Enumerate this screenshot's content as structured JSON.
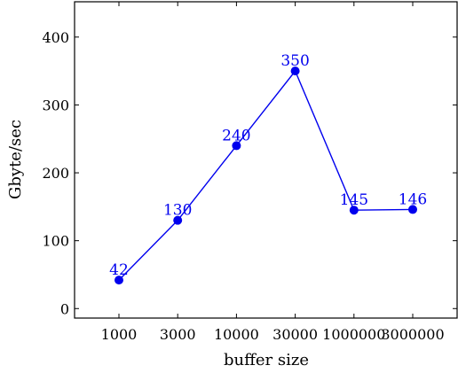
{
  "chart_data": {
    "type": "line",
    "title": "",
    "xlabel": "buffer size",
    "ylabel": "Gbyte/sec",
    "categories": [
      "1000",
      "3000",
      "10000",
      "30000",
      "1000000",
      "3000000"
    ],
    "series": [
      {
        "values": [
          42,
          130,
          240,
          350,
          145,
          146
        ]
      }
    ],
    "data_labels": [
      "42",
      "130",
      "240",
      "350",
      "145",
      "146"
    ],
    "yticks": [
      0,
      100,
      200,
      300,
      400
    ],
    "ytick_labels": [
      "0",
      "100",
      "200",
      "300",
      "400"
    ],
    "ylim": [
      -14,
      452
    ],
    "grid": false,
    "legend": "none",
    "colors": {
      "series": "#0000ee",
      "axis": "#000000",
      "text": "#000000",
      "background": "#ffffff"
    }
  }
}
